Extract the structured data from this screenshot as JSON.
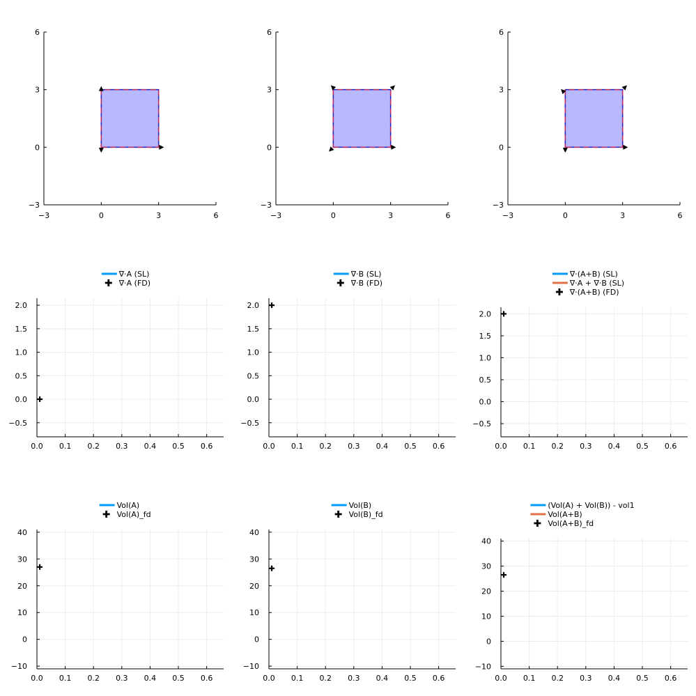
{
  "colors": {
    "series_blue": "#009af9",
    "series_orange": "#e26f46",
    "shape_fill": "#b8b8ff",
    "shape_stroke": "#1e1ec8",
    "shape_dash": "#e0304b",
    "grid": "#ececec",
    "marker": "#000000"
  },
  "chart_data": [
    {
      "type": "area",
      "panel": "shape-A",
      "xlim": [
        -3,
        6
      ],
      "ylim": [
        -3,
        6
      ],
      "xticks": [
        "−3",
        "0",
        "3",
        "6"
      ],
      "yticks": [
        "−3",
        "0",
        "3",
        "6"
      ],
      "xtick_values": [
        -3,
        0,
        3,
        6
      ],
      "ytick_values": [
        -3,
        0,
        3,
        6
      ],
      "grid": false,
      "square": [
        [
          0,
          0
        ],
        [
          3,
          0
        ],
        [
          3,
          3
        ],
        [
          0,
          3
        ]
      ],
      "dashed_square": [
        [
          0,
          0
        ],
        [
          3,
          0
        ],
        [
          3,
          3
        ],
        [
          0,
          3
        ]
      ],
      "arrows": [
        {
          "x": 0,
          "y": 3,
          "dir": "up"
        },
        {
          "x": 0,
          "y": -0.1,
          "dir": "down"
        },
        {
          "x": 3.1,
          "y": 0,
          "dir": "right"
        }
      ]
    },
    {
      "type": "area",
      "panel": "shape-B",
      "xlim": [
        -3,
        6
      ],
      "ylim": [
        -3,
        6
      ],
      "xticks": [
        "−3",
        "0",
        "3",
        "6"
      ],
      "yticks": [
        "−3",
        "0",
        "3",
        "6"
      ],
      "xtick_values": [
        -3,
        0,
        3,
        6
      ],
      "ytick_values": [
        -3,
        0,
        3,
        6
      ],
      "grid": false,
      "square": [
        [
          0,
          0
        ],
        [
          3,
          0
        ],
        [
          3,
          3
        ],
        [
          0,
          3
        ]
      ],
      "dashed_square": [
        [
          0,
          0
        ],
        [
          3,
          0
        ],
        [
          3,
          3
        ],
        [
          0,
          3
        ]
      ],
      "arrows": [
        {
          "x": 0,
          "y": 3.1,
          "dir": "up-left"
        },
        {
          "x": 3.1,
          "y": 3.1,
          "dir": "up-right"
        },
        {
          "x": -0.1,
          "y": -0.1,
          "dir": "down-left"
        },
        {
          "x": 3.1,
          "y": 0,
          "dir": "right"
        }
      ]
    },
    {
      "type": "area",
      "panel": "shape-AB",
      "xlim": [
        -3,
        6
      ],
      "ylim": [
        -3,
        6
      ],
      "xticks": [
        "−3",
        "0",
        "3",
        "6"
      ],
      "yticks": [
        "−3",
        "0",
        "3",
        "6"
      ],
      "xtick_values": [
        -3,
        0,
        3,
        6
      ],
      "ytick_values": [
        -3,
        0,
        3,
        6
      ],
      "grid": false,
      "square": [
        [
          0,
          0
        ],
        [
          3,
          0
        ],
        [
          3,
          3
        ],
        [
          0,
          3
        ]
      ],
      "dashed_square": [
        [
          0,
          0
        ],
        [
          3,
          0
        ],
        [
          3,
          3
        ],
        [
          0,
          3
        ]
      ],
      "arrows": [
        {
          "x": -0.1,
          "y": 2.9,
          "dir": "up-left"
        },
        {
          "x": 3.1,
          "y": 3.1,
          "dir": "up-right"
        },
        {
          "x": 0,
          "y": -0.1,
          "dir": "down"
        },
        {
          "x": 3.1,
          "y": 0,
          "dir": "right"
        }
      ]
    },
    {
      "type": "scatter",
      "panel": "div-A",
      "xlim": [
        0,
        0.66
      ],
      "ylim": [
        -0.8,
        2.15
      ],
      "xticks": [
        "0.0",
        "0.1",
        "0.2",
        "0.3",
        "0.4",
        "0.5",
        "0.6"
      ],
      "xtick_values": [
        0,
        0.1,
        0.2,
        0.3,
        0.4,
        0.5,
        0.6
      ],
      "yticks": [
        "−0.5",
        "0.0",
        "0.5",
        "1.0",
        "1.5",
        "2.0"
      ],
      "ytick_values": [
        -0.5,
        0,
        0.5,
        1.0,
        1.5,
        2.0
      ],
      "grid": true,
      "legend": "top",
      "series": [
        {
          "name": "∇⋅A (SL)",
          "kind": "line",
          "color": "#009af9",
          "x": [],
          "y": []
        },
        {
          "name": "∇⋅A (FD)",
          "kind": "cross",
          "color": "#000000",
          "x": [
            0.01
          ],
          "y": [
            0.0
          ]
        }
      ]
    },
    {
      "type": "scatter",
      "panel": "div-B",
      "xlim": [
        0,
        0.66
      ],
      "ylim": [
        -0.8,
        2.15
      ],
      "xticks": [
        "0.0",
        "0.1",
        "0.2",
        "0.3",
        "0.4",
        "0.5",
        "0.6"
      ],
      "xtick_values": [
        0,
        0.1,
        0.2,
        0.3,
        0.4,
        0.5,
        0.6
      ],
      "yticks": [
        "−0.5",
        "0.0",
        "0.5",
        "1.0",
        "1.5",
        "2.0"
      ],
      "ytick_values": [
        -0.5,
        0,
        0.5,
        1.0,
        1.5,
        2.0
      ],
      "grid": true,
      "legend": "top",
      "series": [
        {
          "name": "∇⋅B (SL)",
          "kind": "line",
          "color": "#009af9",
          "x": [],
          "y": []
        },
        {
          "name": "∇⋅B (FD)",
          "kind": "cross",
          "color": "#000000",
          "x": [
            0.01
          ],
          "y": [
            2.0
          ]
        }
      ]
    },
    {
      "type": "scatter",
      "panel": "div-AB",
      "xlim": [
        0,
        0.66
      ],
      "ylim": [
        -0.8,
        2.15
      ],
      "xticks": [
        "0.0",
        "0.1",
        "0.2",
        "0.3",
        "0.4",
        "0.5",
        "0.6"
      ],
      "xtick_values": [
        0,
        0.1,
        0.2,
        0.3,
        0.4,
        0.5,
        0.6
      ],
      "yticks": [
        "−0.5",
        "0.0",
        "0.5",
        "1.0",
        "1.5",
        "2.0"
      ],
      "ytick_values": [
        -0.5,
        0,
        0.5,
        1.0,
        1.5,
        2.0
      ],
      "grid": true,
      "legend": "top",
      "series": [
        {
          "name": "∇⋅(A+B) (SL)",
          "kind": "line",
          "color": "#009af9",
          "x": [],
          "y": []
        },
        {
          "name": "∇⋅A + ∇⋅B (SL)",
          "kind": "line",
          "color": "#e26f46",
          "x": [],
          "y": []
        },
        {
          "name": "∇⋅(A+B) (FD)",
          "kind": "cross",
          "color": "#000000",
          "x": [
            0.01
          ],
          "y": [
            2.0
          ]
        }
      ]
    },
    {
      "type": "scatter",
      "panel": "vol-A",
      "xlim": [
        0,
        0.66
      ],
      "ylim": [
        -11,
        41
      ],
      "xticks": [
        "0.0",
        "0.1",
        "0.2",
        "0.3",
        "0.4",
        "0.5",
        "0.6"
      ],
      "xtick_values": [
        0,
        0.1,
        0.2,
        0.3,
        0.4,
        0.5,
        0.6
      ],
      "yticks": [
        "−10",
        "0",
        "10",
        "20",
        "30",
        "40"
      ],
      "ytick_values": [
        -10,
        0,
        10,
        20,
        30,
        40
      ],
      "grid": true,
      "legend": "top",
      "series": [
        {
          "name": "Vol(A)",
          "kind": "line",
          "color": "#009af9",
          "x": [],
          "y": []
        },
        {
          "name": "Vol(A)_fd",
          "kind": "cross",
          "color": "#000000",
          "x": [
            0.01
          ],
          "y": [
            27
          ]
        }
      ]
    },
    {
      "type": "scatter",
      "panel": "vol-B",
      "xlim": [
        0,
        0.66
      ],
      "ylim": [
        -11,
        41
      ],
      "xticks": [
        "0.0",
        "0.1",
        "0.2",
        "0.3",
        "0.4",
        "0.5",
        "0.6"
      ],
      "xtick_values": [
        0,
        0.1,
        0.2,
        0.3,
        0.4,
        0.5,
        0.6
      ],
      "yticks": [
        "−10",
        "0",
        "10",
        "20",
        "30",
        "40"
      ],
      "ytick_values": [
        -10,
        0,
        10,
        20,
        30,
        40
      ],
      "grid": true,
      "legend": "top",
      "series": [
        {
          "name": "Vol(B)",
          "kind": "line",
          "color": "#009af9",
          "x": [],
          "y": []
        },
        {
          "name": "Vol(B)_fd",
          "kind": "cross",
          "color": "#000000",
          "x": [
            0.01
          ],
          "y": [
            26.5
          ]
        }
      ]
    },
    {
      "type": "scatter",
      "panel": "vol-AB",
      "xlim": [
        0,
        0.66
      ],
      "ylim": [
        -11,
        41
      ],
      "xticks": [
        "0.0",
        "0.1",
        "0.2",
        "0.3",
        "0.4",
        "0.5",
        "0.6"
      ],
      "xtick_values": [
        0,
        0.1,
        0.2,
        0.3,
        0.4,
        0.5,
        0.6
      ],
      "yticks": [
        "−10",
        "0",
        "10",
        "20",
        "30",
        "40"
      ],
      "ytick_values": [
        -10,
        0,
        10,
        20,
        30,
        40
      ],
      "grid": true,
      "legend": "top",
      "series": [
        {
          "name": "(Vol(A) + Vol(B)) - vol1",
          "kind": "line",
          "color": "#009af9",
          "x": [],
          "y": []
        },
        {
          "name": "Vol(A+B)",
          "kind": "line",
          "color": "#e26f46",
          "x": [],
          "y": []
        },
        {
          "name": "Vol(A+B)_fd",
          "kind": "cross",
          "color": "#000000",
          "x": [
            0.01
          ],
          "y": [
            26.5
          ]
        }
      ]
    }
  ]
}
